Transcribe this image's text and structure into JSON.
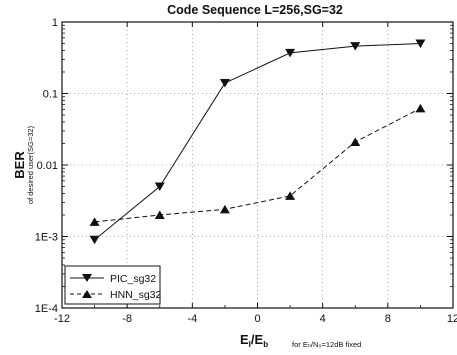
{
  "chart_data": {
    "type": "line",
    "title": "Code Sequence L=256,SG=32",
    "ylabel": {
      "main": "BER",
      "sub": "of desired user(SG=32)"
    },
    "xlabel": {
      "main_base": "E",
      "main_sub1": "I",
      "main_mid": "/E",
      "main_sub2": "b",
      "note": "for Eₕ/N₀=12dB fixed"
    },
    "x_ticks": [
      "-12",
      "-8",
      "-4",
      "0",
      "4",
      "8",
      "12"
    ],
    "y_ticks": [
      "1",
      "0.1",
      "0.01",
      "1E-3",
      "1E-4"
    ],
    "xlim": [
      -12,
      12
    ],
    "ylim": [
      0.0001,
      1
    ],
    "y_scale": "log",
    "grid": "dotted",
    "legend_position": "bottom-left",
    "series": [
      {
        "name": "PIC_sg32",
        "marker": "triangle-down",
        "line_style": "solid",
        "x": [
          -10,
          -6,
          -2,
          2,
          6,
          10
        ],
        "y": [
          0.0009,
          0.005,
          0.14,
          0.37,
          0.46,
          0.5
        ]
      },
      {
        "name": "HNN_sg32",
        "marker": "triangle-up",
        "line_style": "dashed",
        "x": [
          -10,
          -6,
          -2,
          2,
          6,
          10
        ],
        "y": [
          0.0016,
          0.002,
          0.0024,
          0.0037,
          0.021,
          0.062
        ]
      }
    ]
  }
}
